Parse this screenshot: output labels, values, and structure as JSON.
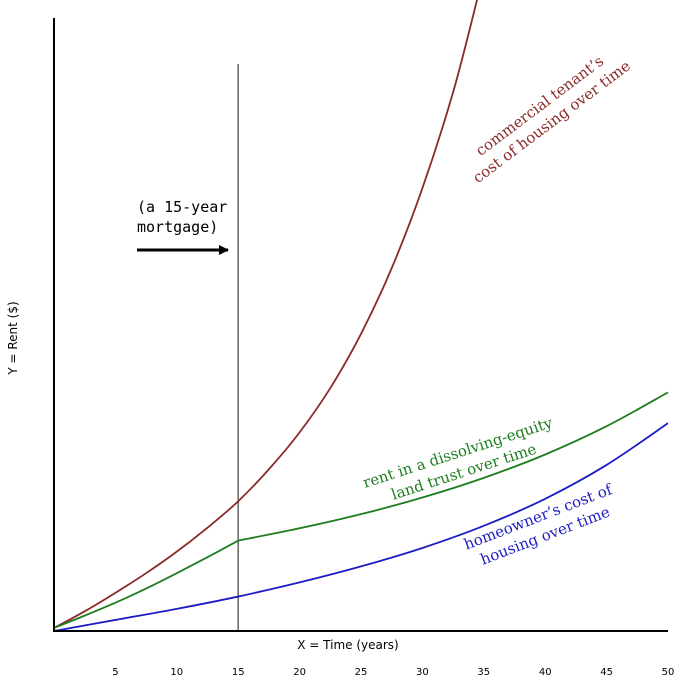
{
  "chart_data": {
    "type": "line",
    "title": "",
    "xlabel": "X = Time (years)",
    "ylabel": "Y = Rent ($)",
    "xlim": [
      0,
      50
    ],
    "ylim": [
      0,
      100
    ],
    "xticks": [
      5,
      10,
      15,
      20,
      25,
      30,
      35,
      40,
      45,
      50
    ],
    "grid": false,
    "legend": "none (series labeled inline)",
    "series": [
      {
        "name": "commercial tenant's cost of housing over time",
        "color": "#8b2a2a",
        "x": [
          0,
          2.5,
          5,
          7.5,
          10,
          12.5,
          15,
          17.5,
          20,
          22.5,
          25,
          27.5,
          30,
          32.5,
          34.5
        ],
        "y": [
          0.5,
          3.2,
          6.2,
          9.4,
          12.9,
          16.8,
          21.1,
          26.3,
          32.3,
          39.5,
          48.3,
          59.0,
          72.0,
          87.6,
          103
        ]
      },
      {
        "name": "rent in a dissolving-equity land trust over time",
        "color": "#1e7d1e",
        "x": [
          0,
          2.5,
          5,
          7.5,
          10,
          12.5,
          15,
          20,
          25,
          30,
          35,
          40,
          45,
          50
        ],
        "y": [
          0.5,
          2.5,
          4.6,
          6.9,
          9.4,
          12.0,
          14.7,
          16.7,
          19.0,
          21.7,
          24.9,
          28.7,
          33.3,
          38.8
        ]
      },
      {
        "name": "homeowner's cost of housing over time",
        "color": "#1c1cc4",
        "x": [
          0,
          5,
          10,
          15,
          20,
          25,
          30,
          35,
          40,
          45,
          50
        ],
        "y": [
          0,
          1.8,
          3.6,
          5.6,
          7.9,
          10.5,
          13.5,
          17.1,
          21.5,
          27.0,
          33.8
        ]
      }
    ],
    "annotations": {
      "marker_x": 15,
      "mortgage_line1": "(a 15-year",
      "mortgage_line2": "mortgage)",
      "commercial_line1": "commercial tenant’s",
      "commercial_line2": "cost of housing over time",
      "landtrust_line1": "rent in a dissolving-equity",
      "landtrust_line2": "land trust over time",
      "homeowner_line1": "homeowner’s cost of",
      "homeowner_line2": "housing over time"
    }
  }
}
